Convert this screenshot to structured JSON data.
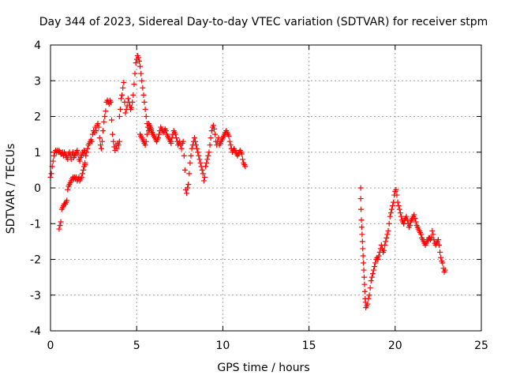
{
  "chart_data": {
    "type": "scatter",
    "title": "Day 344 of 2023, Sidereal Day-to-day VTEC variation (SDTVAR) for receiver stpm",
    "xlabel": "GPS time / hours",
    "ylabel": "SDTVAR / TECUs",
    "xlim": [
      0,
      25
    ],
    "ylim": [
      -4,
      4
    ],
    "xticks": [
      0,
      5,
      10,
      15,
      20,
      25
    ],
    "yticks": [
      -4,
      -3,
      -2,
      -1,
      0,
      1,
      2,
      3,
      4
    ],
    "xtick_labels": [
      "0",
      "5",
      "10",
      "15",
      "20",
      "25"
    ],
    "ytick_labels": [
      "-4",
      "-3",
      "-2",
      "-1",
      "0",
      "1",
      "2",
      "3",
      "4"
    ],
    "grid": true,
    "marker": "+",
    "color": "#ff0000",
    "series": [
      {
        "name": "SDTVAR",
        "x": [
          0.0,
          0.05,
          0.1,
          0.15,
          0.2,
          0.25,
          0.3,
          0.35,
          0.4,
          0.45,
          0.5,
          0.55,
          0.6,
          0.65,
          0.7,
          0.75,
          0.8,
          0.85,
          0.9,
          0.95,
          1.0,
          1.05,
          1.1,
          1.15,
          1.2,
          1.25,
          1.3,
          1.35,
          1.4,
          1.45,
          1.5,
          1.55,
          1.6,
          1.65,
          1.7,
          1.75,
          1.8,
          1.85,
          1.9,
          1.95,
          2.0,
          0.5,
          0.55,
          0.6,
          0.65,
          0.7,
          0.75,
          0.8,
          0.85,
          0.9,
          0.95,
          1.0,
          1.05,
          1.1,
          1.15,
          1.2,
          1.25,
          1.3,
          1.35,
          1.4,
          1.45,
          1.5,
          1.55,
          1.6,
          1.65,
          1.7,
          1.75,
          1.8,
          1.85,
          1.9,
          1.95,
          2.0,
          2.0,
          2.05,
          2.1,
          2.15,
          2.2,
          2.25,
          2.3,
          2.35,
          2.4,
          2.45,
          2.5,
          2.55,
          2.6,
          2.65,
          2.7,
          2.75,
          2.8,
          2.85,
          2.9,
          2.95,
          3.0,
          3.05,
          3.1,
          3.15,
          3.2,
          3.25,
          3.3,
          3.35,
          3.4,
          3.45,
          3.5,
          3.55,
          3.6,
          3.65,
          3.7,
          3.75,
          3.8,
          3.85,
          3.9,
          3.95,
          4.0,
          4.0,
          4.05,
          4.1,
          4.15,
          4.2,
          4.25,
          4.3,
          4.35,
          4.4,
          4.45,
          4.5,
          4.55,
          4.6,
          4.65,
          4.7,
          4.75,
          4.8,
          4.85,
          4.9,
          4.95,
          5.0,
          5.05,
          5.1,
          5.15,
          5.2,
          5.25,
          5.3,
          5.35,
          5.4,
          5.45,
          5.5,
          5.55,
          5.6,
          5.65,
          5.7,
          5.75,
          5.8,
          5.85,
          5.9,
          5.95,
          6.0,
          5.2,
          5.25,
          5.3,
          5.35,
          5.4,
          5.45,
          5.5,
          5.55,
          5.6,
          5.65,
          5.7,
          5.75,
          5.8,
          5.85,
          5.9,
          5.95,
          6.0,
          6.05,
          6.1,
          6.15,
          6.2,
          6.25,
          6.3,
          6.35,
          6.4,
          6.45,
          6.5,
          6.55,
          6.6,
          6.65,
          6.7,
          6.75,
          6.8,
          6.85,
          6.9,
          6.95,
          7.0,
          7.0,
          7.05,
          7.1,
          7.15,
          7.2,
          7.25,
          7.3,
          7.35,
          7.4,
          7.45,
          7.5,
          7.55,
          7.6,
          7.65,
          7.7,
          7.75,
          7.8,
          7.85,
          7.9,
          7.95,
          8.0,
          8.05,
          8.1,
          8.15,
          8.2,
          8.25,
          8.3,
          8.35,
          8.4,
          8.45,
          8.5,
          8.55,
          8.6,
          8.65,
          8.7,
          8.75,
          8.8,
          8.85,
          8.9,
          8.95,
          9.0,
          9.0,
          9.05,
          9.1,
          9.15,
          9.2,
          9.25,
          9.3,
          9.35,
          9.4,
          9.45,
          9.5,
          9.55,
          9.6,
          9.65,
          9.7,
          9.75,
          9.8,
          9.85,
          9.9,
          9.95,
          10.0,
          10.05,
          10.1,
          10.15,
          10.2,
          10.25,
          10.3,
          10.35,
          10.4,
          10.45,
          10.5,
          10.55,
          10.6,
          10.65,
          10.7,
          10.75,
          10.8,
          10.85,
          10.9,
          10.95,
          11.0,
          11.05,
          11.1,
          11.15,
          11.2,
          11.25,
          11.3,
          18.0,
          18.0,
          18.02,
          18.04,
          18.06,
          18.08,
          18.1,
          18.12,
          18.14,
          18.16,
          18.18,
          18.2,
          18.22,
          18.24,
          18.26,
          18.28,
          18.3,
          18.35,
          18.4,
          18.45,
          18.5,
          18.55,
          18.6,
          18.65,
          18.7,
          18.75,
          18.8,
          18.85,
          18.9,
          18.95,
          19.0,
          19.0,
          19.05,
          19.1,
          19.15,
          19.2,
          19.25,
          19.3,
          19.35,
          19.4,
          19.45,
          19.5,
          19.55,
          19.6,
          19.65,
          19.7,
          19.75,
          19.8,
          19.85,
          19.9,
          19.95,
          20.0,
          20.05,
          20.1,
          20.15,
          20.2,
          20.25,
          20.3,
          20.35,
          20.4,
          20.45,
          20.5,
          20.5,
          20.55,
          20.6,
          20.65,
          20.7,
          20.75,
          20.8,
          20.85,
          20.9,
          20.95,
          21.0,
          21.05,
          21.1,
          21.15,
          21.2,
          21.25,
          21.3,
          21.35,
          21.4,
          21.45,
          21.5,
          21.55,
          21.6,
          21.65,
          21.7,
          21.75,
          21.8,
          21.85,
          21.9,
          21.95,
          22.0,
          22.0,
          22.05,
          22.1,
          22.15,
          22.2,
          22.25,
          22.3,
          22.35,
          22.4,
          22.45,
          22.5,
          22.55,
          22.6,
          22.65,
          22.7,
          22.75,
          22.8,
          22.85,
          22.9
        ],
        "y": [
          0.3,
          0.4,
          0.6,
          0.75,
          0.9,
          1.0,
          1.05,
          1.0,
          1.05,
          1.0,
          1.05,
          1.0,
          0.95,
          0.95,
          1.0,
          0.9,
          1.0,
          0.95,
          0.9,
          0.85,
          0.8,
          0.95,
          1.0,
          0.9,
          0.8,
          0.95,
          1.0,
          0.85,
          0.9,
          0.95,
          1.0,
          1.05,
          0.95,
          0.8,
          0.75,
          0.85,
          0.9,
          1.0,
          0.95,
          1.05,
          1.0,
          -1.15,
          -1.05,
          -0.95,
          -0.6,
          -0.55,
          -0.5,
          -0.45,
          -0.45,
          -0.4,
          -0.35,
          -0.05,
          0.05,
          0.1,
          0.15,
          0.2,
          0.25,
          0.3,
          0.25,
          0.3,
          0.25,
          0.3,
          0.2,
          0.25,
          0.3,
          0.2,
          0.25,
          0.3,
          0.4,
          0.5,
          0.6,
          0.65,
          0.7,
          0.9,
          1.0,
          1.1,
          1.2,
          1.25,
          1.3,
          1.35,
          1.3,
          1.5,
          1.6,
          1.55,
          1.7,
          1.6,
          1.75,
          1.8,
          1.7,
          1.4,
          1.2,
          1.1,
          1.3,
          1.6,
          1.85,
          2.0,
          2.15,
          2.4,
          2.45,
          2.4,
          2.35,
          2.45,
          2.4,
          1.9,
          1.5,
          1.3,
          1.15,
          1.05,
          1.2,
          1.1,
          1.25,
          1.2,
          1.3,
          2.0,
          2.2,
          2.5,
          2.6,
          2.8,
          2.95,
          2.4,
          2.1,
          2.2,
          2.3,
          2.5,
          2.4,
          2.3,
          2.2,
          2.25,
          2.4,
          2.6,
          2.9,
          3.2,
          3.5,
          3.6,
          3.7,
          3.65,
          3.55,
          3.4,
          3.2,
          3.0,
          2.8,
          2.6,
          2.4,
          2.2,
          2.0,
          1.8,
          1.7,
          1.6,
          1.65,
          1.7,
          1.6,
          1.55,
          1.5,
          1.45,
          1.5,
          1.45,
          1.4,
          1.35,
          1.3,
          1.25,
          1.2,
          1.3,
          1.5,
          1.7,
          1.8,
          1.75,
          1.7,
          1.65,
          1.55,
          1.5,
          1.45,
          1.4,
          1.35,
          1.3,
          1.35,
          1.4,
          1.5,
          1.6,
          1.7,
          1.65,
          1.6,
          1.55,
          1.6,
          1.65,
          1.6,
          1.5,
          1.45,
          1.4,
          1.35,
          1.3,
          1.25,
          1.3,
          1.4,
          1.5,
          1.6,
          1.55,
          1.5,
          1.4,
          1.3,
          1.2,
          1.25,
          1.3,
          1.2,
          1.1,
          1.25,
          1.3,
          0.9,
          0.5,
          -0.05,
          -0.15,
          0.0,
          0.1,
          0.4,
          0.7,
          0.9,
          1.1,
          1.2,
          1.3,
          1.4,
          1.3,
          1.2,
          1.1,
          1.0,
          0.9,
          0.8,
          0.7,
          0.6,
          0.5,
          0.4,
          0.2,
          0.3,
          0.6,
          0.6,
          0.7,
          0.8,
          0.9,
          1.0,
          1.2,
          1.4,
          1.6,
          1.7,
          1.75,
          1.65,
          1.5,
          1.3,
          1.2,
          1.3,
          1.4,
          1.2,
          1.25,
          1.3,
          1.35,
          1.4,
          1.45,
          1.5,
          1.55,
          1.6,
          1.55,
          1.5,
          1.45,
          1.3,
          1.2,
          1.1,
          1.0,
          1.05,
          1.1,
          1.05,
          1.0,
          0.95,
          0.9,
          0.95,
          1.0,
          1.05,
          1.0,
          0.95,
          0.8,
          0.7,
          0.65,
          0.6,
          0.0,
          -0.3,
          -0.6,
          -0.9,
          -1.1,
          -1.3,
          -1.5,
          -1.7,
          -1.9,
          -2.1,
          -2.3,
          -2.5,
          -2.7,
          -2.9,
          -3.1,
          -3.2,
          -3.35,
          -3.3,
          -3.25,
          -3.1,
          -3.0,
          -2.8,
          -2.6,
          -2.5,
          -2.4,
          -2.3,
          -2.2,
          -2.1,
          -2.0,
          -1.95,
          -2.0,
          -2.0,
          -1.9,
          -1.8,
          -1.7,
          -1.6,
          -1.7,
          -1.8,
          -1.75,
          -1.6,
          -1.5,
          -1.4,
          -1.3,
          -1.2,
          -1.0,
          -0.8,
          -0.7,
          -0.6,
          -0.5,
          -0.4,
          -0.2,
          -0.1,
          -0.05,
          -0.2,
          -0.4,
          -0.5,
          -0.6,
          -0.7,
          -0.8,
          -0.9,
          -0.95,
          -1.0,
          -1.0,
          -0.9,
          -0.85,
          -0.8,
          -0.9,
          -1.0,
          -1.1,
          -1.05,
          -0.95,
          -0.9,
          -0.85,
          -0.8,
          -0.75,
          -0.85,
          -0.95,
          -1.05,
          -1.1,
          -1.15,
          -1.2,
          -1.25,
          -1.3,
          -1.4,
          -1.45,
          -1.5,
          -1.55,
          -1.6,
          -1.55,
          -1.5,
          -1.45,
          -1.4,
          -1.4,
          -1.4,
          -1.45,
          -1.4,
          -1.2,
          -1.3,
          -1.45,
          -1.55,
          -1.6,
          -1.55,
          -1.5,
          -1.45,
          -1.6,
          -1.8,
          -1.95,
          -2.05,
          -2.1,
          -2.25,
          -2.35,
          -2.3
        ]
      }
    ]
  }
}
